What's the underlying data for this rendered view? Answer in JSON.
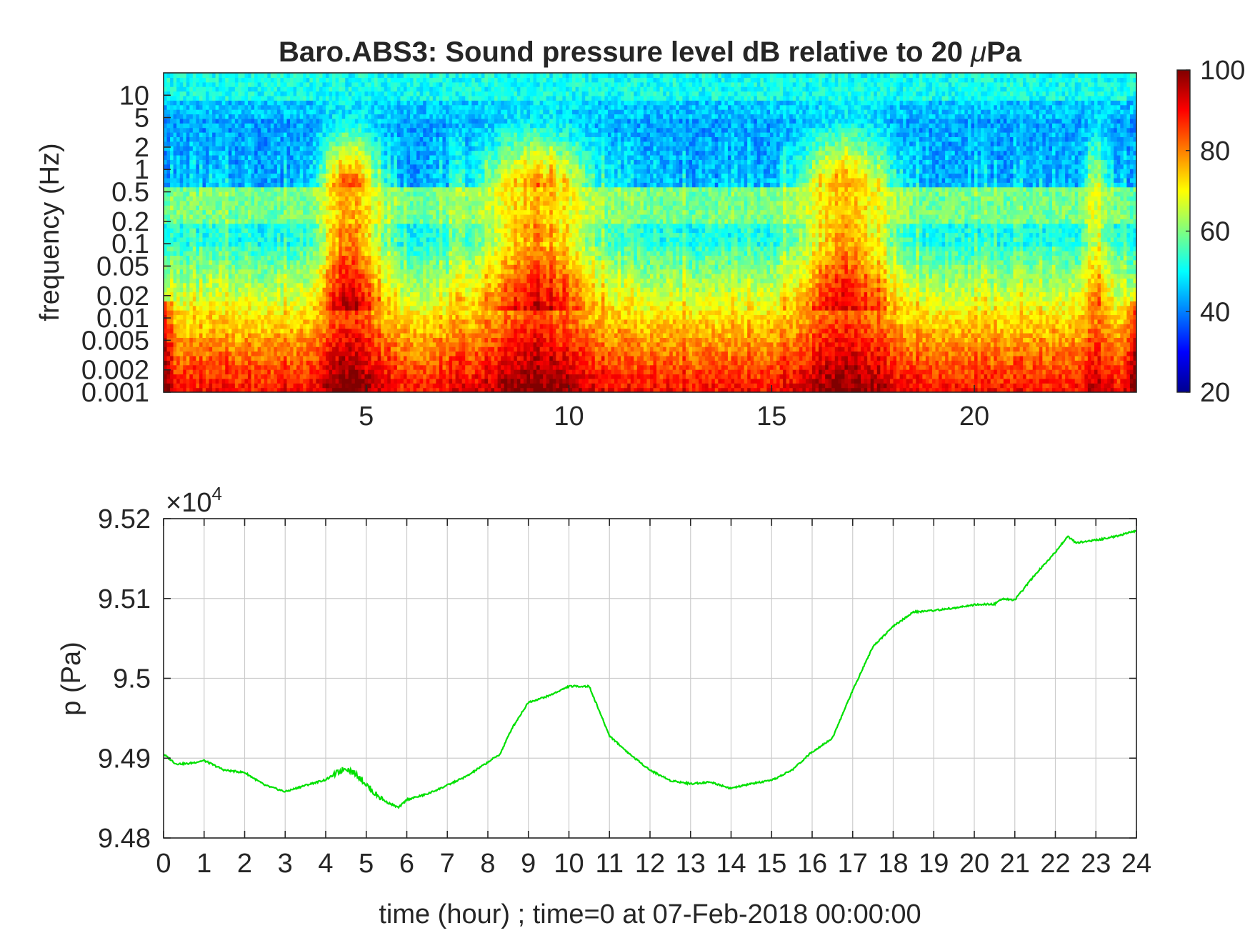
{
  "chart_data": [
    {
      "type": "heatmap",
      "title": "Baro.ABS3: Sound pressure level dB relative to 20 μPa",
      "title_parts": [
        "Baro.ABS3: Sound pressure level dB relative to 20 ",
        "μ",
        "Pa"
      ],
      "xlabel": "",
      "ylabel": "frequency (Hz)",
      "x_ticks": [
        "5",
        "10",
        "15",
        "20"
      ],
      "x_tick_values": [
        5,
        10,
        15,
        20
      ],
      "xlim": [
        0,
        24
      ],
      "y_scale": "log",
      "ylim": [
        0.001,
        20
      ],
      "y_ticks": [
        "10",
        "5",
        "2",
        "1",
        "0.5",
        "0.2",
        "0.1",
        "0.05",
        "0.02",
        "0.01",
        "0.005",
        "0.002",
        "0.001"
      ],
      "y_tick_values": [
        10,
        5,
        2,
        1,
        0.5,
        0.2,
        0.1,
        0.05,
        0.02,
        0.01,
        0.005,
        0.002,
        0.001
      ],
      "colormap": "jet",
      "colorbar_ticks": [
        "100",
        "80",
        "60",
        "40",
        "20"
      ],
      "colorbar_values": [
        100,
        80,
        60,
        40,
        20
      ],
      "clim": [
        20,
        100
      ],
      "activity_hours": [
        {
          "center": 4.6,
          "width": 0.7,
          "strength": 1.0
        },
        {
          "center": 9.2,
          "width": 1.3,
          "strength": 0.85
        },
        {
          "center": 16.8,
          "width": 1.1,
          "strength": 0.85
        },
        {
          "center": 23.0,
          "width": 0.3,
          "strength": 0.5
        }
      ]
    },
    {
      "type": "line",
      "title": "",
      "xlabel": "time (hour) ; time=0 at 07-Feb-2018 00:00:00",
      "ylabel": "p (Pa)",
      "y_multiplier": "×10",
      "y_multiplier_exp": "4",
      "xlim": [
        0,
        24
      ],
      "ylim": [
        9.48,
        9.52
      ],
      "x_ticks": [
        "0",
        "1",
        "2",
        "3",
        "4",
        "5",
        "6",
        "7",
        "8",
        "9",
        "10",
        "11",
        "12",
        "13",
        "14",
        "15",
        "16",
        "17",
        "18",
        "19",
        "20",
        "21",
        "22",
        "23",
        "24"
      ],
      "x_tick_values": [
        0,
        1,
        2,
        3,
        4,
        5,
        6,
        7,
        8,
        9,
        10,
        11,
        12,
        13,
        14,
        15,
        16,
        17,
        18,
        19,
        20,
        21,
        22,
        23,
        24
      ],
      "y_ticks": [
        "9.52",
        "9.51",
        "9.5",
        "9.49",
        "9.48"
      ],
      "y_tick_values": [
        9.52,
        9.51,
        9.5,
        9.49,
        9.48
      ],
      "grid": true,
      "color": "#00e000",
      "series": [
        {
          "x": [
            0,
            0.3,
            0.6,
            1.0,
            1.5,
            2.0,
            2.5,
            3.0,
            3.5,
            4.0,
            4.5,
            4.8,
            5.2,
            5.5,
            5.8,
            6.0,
            6.5,
            7.0,
            7.5,
            8.0,
            8.3,
            8.6,
            9.0,
            9.5,
            10.0,
            10.5,
            11.0,
            11.5,
            12.0,
            12.5,
            13.0,
            13.5,
            14.0,
            14.5,
            15.0,
            15.5,
            16.0,
            16.5,
            17.0,
            17.5,
            18.0,
            18.5,
            19.0,
            19.5,
            20.0,
            20.5,
            20.7,
            21.0,
            21.5,
            22.0,
            22.3,
            22.5,
            23.0,
            23.5,
            24.0
          ],
          "y": [
            9.4905,
            9.4893,
            9.4893,
            9.4897,
            9.4885,
            9.4882,
            9.4866,
            9.4858,
            9.4866,
            9.4873,
            9.4888,
            9.4878,
            9.4856,
            9.4845,
            9.4838,
            9.4848,
            9.4855,
            9.4866,
            9.4878,
            9.4895,
            9.4905,
            9.4938,
            9.497,
            9.4978,
            9.499,
            9.499,
            9.4928,
            9.4905,
            9.4885,
            9.4872,
            9.4868,
            9.487,
            9.4862,
            9.4868,
            9.4872,
            9.4885,
            9.4908,
            9.4925,
            9.4985,
            9.504,
            9.5065,
            9.5083,
            9.5085,
            9.5088,
            9.5092,
            9.5093,
            9.51,
            9.5098,
            9.513,
            9.5158,
            9.5178,
            9.517,
            9.5173,
            9.5178,
            9.5185
          ]
        }
      ]
    }
  ]
}
